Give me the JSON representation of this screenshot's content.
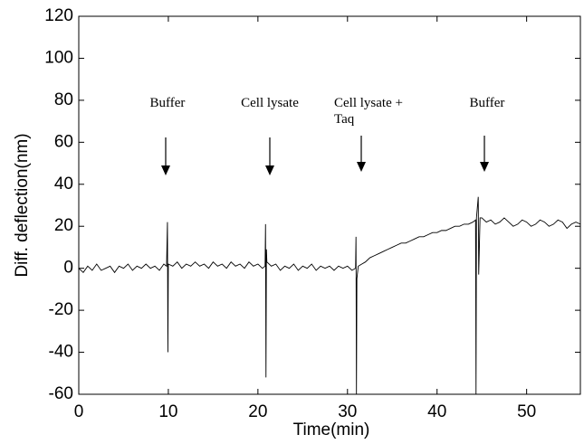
{
  "chart_data": {
    "type": "line",
    "x_label": "Time(min)",
    "y_label": "Diff. deflection(nm)",
    "annotations": [
      "Buffer",
      "Cell lysate",
      "Cell lysate +",
      "Taq",
      "Buffer"
    ],
    "xlim": [
      0,
      56
    ],
    "ylim": [
      -60,
      120
    ],
    "xticks": [
      0,
      10,
      20,
      30,
      40,
      50
    ],
    "yticks": [
      -60,
      -40,
      -20,
      0,
      20,
      40,
      60,
      80,
      100,
      120
    ],
    "series": [
      {
        "color": "#000000",
        "x": [
          0,
          0.5,
          1,
          1.5,
          2,
          2.5,
          3,
          3.5,
          4,
          4.5,
          5,
          5.5,
          6,
          6.5,
          7,
          7.5,
          8,
          8.5,
          9,
          9.5,
          9.8,
          9.9,
          9.95,
          10,
          10.5,
          11,
          11.5,
          12,
          12.5,
          13,
          13.5,
          14,
          14.5,
          15,
          15.5,
          16,
          16.5,
          17,
          17.5,
          18,
          18.5,
          19,
          19.5,
          20,
          20.5,
          20.8,
          20.85,
          20.9,
          20.95,
          21,
          21.5,
          22,
          22.5,
          23,
          23.5,
          24,
          24.5,
          25,
          25.5,
          26,
          26.5,
          27,
          27.5,
          28,
          28.5,
          29,
          29.5,
          30,
          30.5,
          30.9,
          30.95,
          31,
          31.05,
          31.2,
          31.6,
          32,
          32.5,
          33,
          33.5,
          34,
          34.5,
          35,
          35.5,
          36,
          36.5,
          37,
          37.5,
          38,
          38.5,
          39,
          39.5,
          40,
          40.5,
          41,
          41.5,
          42,
          42.5,
          43,
          43.5,
          44,
          44.3,
          44.35,
          44.4,
          44.6,
          44.65,
          44.8,
          45,
          45.5,
          46,
          46.5,
          47,
          47.5,
          48,
          48.5,
          49,
          49.5,
          50,
          50.5,
          51,
          51.5,
          52,
          52.5,
          53,
          53.5,
          54,
          54.5,
          55,
          55.5,
          56
        ],
        "values": [
          0,
          -2,
          1,
          -1,
          2,
          -1,
          0,
          1,
          -2,
          1,
          0,
          2,
          -1,
          1,
          0,
          2,
          0,
          1,
          -1,
          2,
          1,
          22,
          -40,
          2,
          1,
          3,
          0,
          2,
          1,
          3,
          1,
          2,
          0,
          3,
          1,
          2,
          0,
          3,
          1,
          2,
          0,
          3,
          1,
          2,
          0,
          1,
          21,
          -52,
          9,
          3,
          1,
          2,
          -1,
          1,
          0,
          2,
          -1,
          1,
          0,
          2,
          -1,
          1,
          0,
          1,
          -1,
          1,
          0,
          1,
          -1,
          0,
          15,
          -60,
          -5,
          1,
          2,
          3,
          5,
          6,
          7,
          8,
          9,
          10,
          11,
          12,
          12,
          13,
          14,
          15,
          15,
          16,
          17,
          17,
          18,
          18,
          19,
          20,
          20,
          21,
          21,
          22,
          23,
          -60,
          24,
          34,
          -3,
          24,
          24,
          22,
          23,
          21,
          22,
          24,
          22,
          20,
          21,
          23,
          22,
          20,
          21,
          23,
          22,
          20,
          21,
          23,
          22,
          19,
          21,
          22,
          21
        ]
      }
    ]
  }
}
